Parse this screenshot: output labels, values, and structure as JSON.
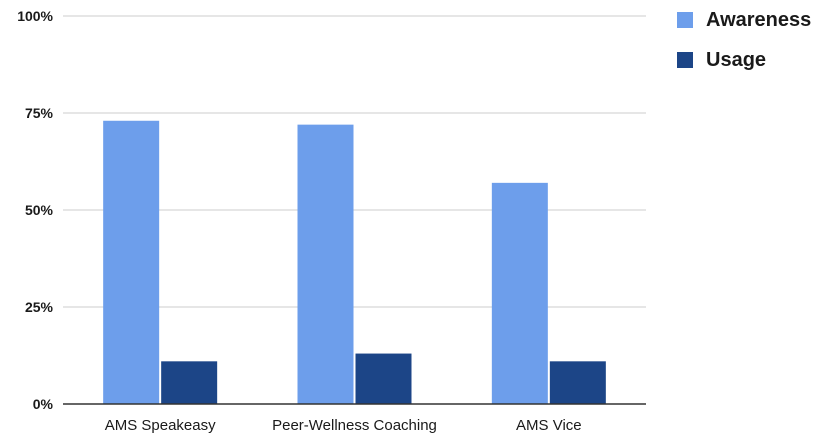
{
  "chart_data": {
    "type": "bar",
    "categories": [
      "AMS Speakeasy",
      "Peer-Wellness Coaching",
      "AMS Vice"
    ],
    "series": [
      {
        "name": "Awareness",
        "values": [
          73,
          72,
          57
        ],
        "color": "#6d9eeb"
      },
      {
        "name": "Usage",
        "values": [
          11,
          13,
          11
        ],
        "color": "#1c4587"
      }
    ],
    "y_ticks": [
      "0%",
      "25%",
      "50%",
      "75%",
      "100%"
    ],
    "ylim": [
      0,
      100
    ],
    "grid": true,
    "legend_position": "top-right"
  }
}
